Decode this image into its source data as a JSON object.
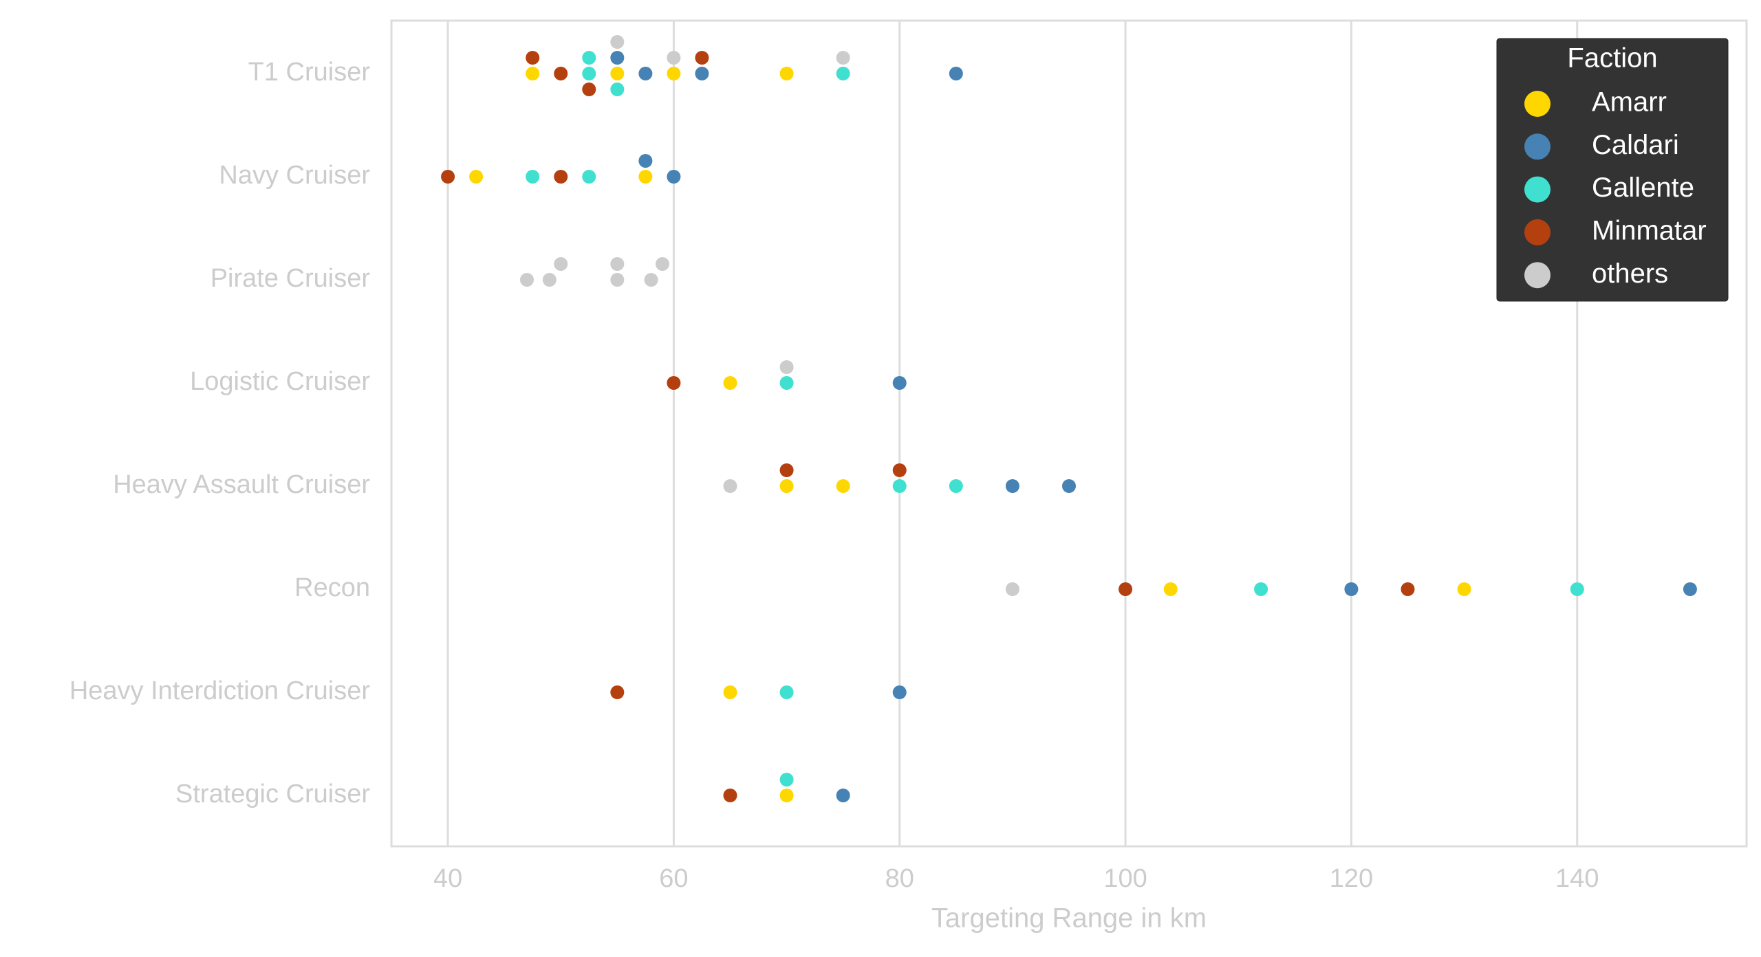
{
  "chart_data": {
    "type": "swarm",
    "xlabel": "Targeting Range in km",
    "categories": [
      "T1 Cruiser",
      "Navy Cruiser",
      "Pirate Cruiser",
      "Logistic Cruiser",
      "Heavy Assault Cruiser",
      "Recon",
      "Heavy Interdiction Cruiser",
      "Strategic Cruiser"
    ],
    "xlim": [
      35,
      155
    ],
    "xticks": [
      40,
      60,
      80,
      100,
      120,
      140
    ],
    "grid": true,
    "legend_title": "Faction",
    "legend": "upper right",
    "series": [
      {
        "name": "Amarr",
        "color": "#ffd700",
        "x": [
          47.5,
          55,
          60,
          70,
          42.5,
          57.5,
          65,
          70,
          75,
          104,
          130,
          65,
          70
        ],
        "category": [
          "T1 Cruiser",
          "T1 Cruiser",
          "T1 Cruiser",
          "T1 Cruiser",
          "Navy Cruiser",
          "Navy Cruiser",
          "Logistic Cruiser",
          "Heavy Assault Cruiser",
          "Heavy Assault Cruiser",
          "Recon",
          "Recon",
          "Heavy Interdiction Cruiser",
          "Strategic Cruiser"
        ]
      },
      {
        "name": "Caldari",
        "color": "#4682b4",
        "x": [
          55,
          57.5,
          62.5,
          85,
          57.5,
          60,
          80,
          90,
          95,
          120,
          150,
          80,
          75
        ],
        "category": [
          "T1 Cruiser",
          "T1 Cruiser",
          "T1 Cruiser",
          "T1 Cruiser",
          "Navy Cruiser",
          "Navy Cruiser",
          "Logistic Cruiser",
          "Heavy Assault Cruiser",
          "Heavy Assault Cruiser",
          "Recon",
          "Recon",
          "Heavy Interdiction Cruiser",
          "Strategic Cruiser"
        ]
      },
      {
        "name": "Gallente",
        "color": "#40e0d0",
        "x": [
          52.5,
          52.5,
          55,
          75,
          47.5,
          52.5,
          70,
          80,
          85,
          112,
          140,
          70,
          70
        ],
        "category": [
          "T1 Cruiser",
          "T1 Cruiser",
          "T1 Cruiser",
          "T1 Cruiser",
          "Navy Cruiser",
          "Navy Cruiser",
          "Logistic Cruiser",
          "Heavy Assault Cruiser",
          "Heavy Assault Cruiser",
          "Recon",
          "Recon",
          "Heavy Interdiction Cruiser",
          "Strategic Cruiser"
        ]
      },
      {
        "name": "Minmatar",
        "color": "#b5400f",
        "x": [
          47.5,
          50,
          52.5,
          62.5,
          40,
          50,
          60,
          70,
          80,
          100,
          125,
          55,
          65
        ],
        "category": [
          "T1 Cruiser",
          "T1 Cruiser",
          "T1 Cruiser",
          "T1 Cruiser",
          "Navy Cruiser",
          "Navy Cruiser",
          "Logistic Cruiser",
          "Heavy Assault Cruiser",
          "Heavy Assault Cruiser",
          "Recon",
          "Recon",
          "Heavy Interdiction Cruiser",
          "Strategic Cruiser"
        ]
      },
      {
        "name": "others",
        "color": "#cccccc",
        "x": [
          55,
          60,
          75,
          47,
          49,
          50,
          55,
          55,
          58,
          59,
          70,
          65,
          90
        ],
        "category": [
          "T1 Cruiser",
          "T1 Cruiser",
          "T1 Cruiser",
          "Pirate Cruiser",
          "Pirate Cruiser",
          "Pirate Cruiser",
          "Pirate Cruiser",
          "Pirate Cruiser",
          "Pirate Cruiser",
          "Pirate Cruiser",
          "Logistic Cruiser",
          "Heavy Assault Cruiser",
          "Recon"
        ]
      }
    ]
  }
}
